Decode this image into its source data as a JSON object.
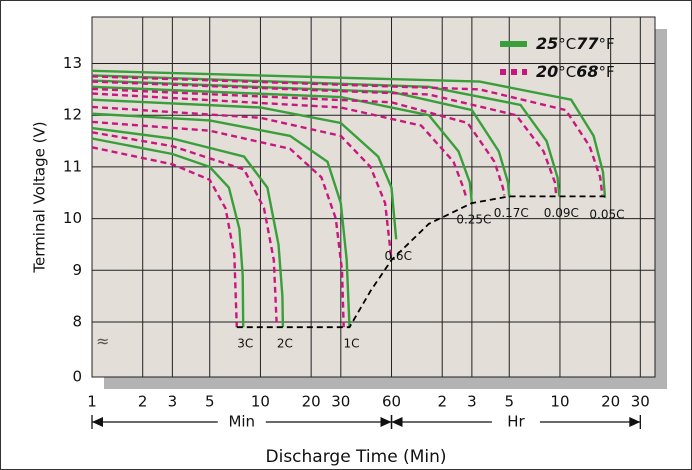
{
  "chart_data": {
    "type": "line",
    "x_label": "Discharge Time (Min)",
    "y_label": "Terminal Voltage (V)",
    "xscale": "log",
    "xlim": [
      1,
      2200
    ],
    "xticks": [
      1,
      2,
      3,
      5,
      10,
      20,
      30,
      60,
      {
        "value": 120,
        "label": "2"
      },
      {
        "value": 180,
        "label": "3"
      },
      {
        "value": 300,
        "label": "5"
      },
      {
        "value": 600,
        "label": "10"
      },
      {
        "value": 1200,
        "label": "20"
      },
      {
        "value": 1800,
        "label": "30"
      }
    ],
    "ylim": [
      0,
      13.9
    ],
    "yticks": [
      0,
      8,
      9,
      10,
      11,
      12,
      13
    ],
    "y_axis_break": "≈",
    "grid": true,
    "time_units": [
      {
        "label": "Min",
        "from": 1,
        "to": 60
      },
      {
        "label": "Hr",
        "from": 60,
        "to": 1800
      }
    ],
    "legend": [
      {
        "temp_c": "25",
        "unit_c": "°C",
        "temp_f": "77",
        "unit_f": "°F",
        "color": "#3a9e3a",
        "dash": false
      },
      {
        "temp_c": "20",
        "unit_c": "°C",
        "temp_f": "68",
        "unit_f": "°F",
        "color": "#c8187f",
        "dash": true
      }
    ],
    "curves": [
      {
        "label": "3C",
        "series": [
          {
            "x": [
              1,
              3,
              5,
              6.5,
              7.5,
              7.85,
              7.9
            ],
            "values": [
              11.55,
              11.25,
              11.0,
              10.6,
              9.8,
              8.9,
              7.9
            ]
          },
          {
            "x": [
              1,
              3,
              5,
              6.2,
              7,
              7.24
            ],
            "values": [
              11.38,
              11.05,
              10.75,
              10.2,
              9.3,
              7.9
            ]
          }
        ]
      },
      {
        "label": "2C",
        "series": [
          {
            "x": [
              1,
              3,
              8,
              11,
              12.8,
              13.5,
              13.6
            ],
            "values": [
              11.75,
              11.55,
              11.2,
              10.6,
              9.5,
              8.5,
              7.9
            ]
          },
          {
            "x": [
              1,
              3,
              8,
              10.5,
              12,
              12.5
            ],
            "values": [
              11.67,
              11.4,
              10.95,
              10.2,
              9.2,
              7.9
            ]
          }
        ]
      },
      {
        "label": "1C",
        "series": [
          {
            "x": [
              1,
              5,
              15,
              25,
              30,
              32.5,
              33.8
            ],
            "values": [
              12.03,
              11.9,
              11.6,
              11.1,
              10.3,
              9.2,
              7.9
            ]
          },
          {
            "x": [
              1,
              5,
              15,
              23,
              28,
              30.5,
              31.2
            ],
            "values": [
              11.87,
              11.7,
              11.35,
              10.8,
              10.0,
              9.0,
              7.9
            ]
          }
        ]
      },
      {
        "label": "0.6C",
        "series": [
          {
            "x": [
              1,
              10,
              30,
              50,
              60,
              64
            ],
            "values": [
              12.3,
              12.15,
              11.85,
              11.2,
              10.6,
              9.6
            ]
          },
          {
            "x": [
              1,
              10,
              30,
              45,
              55,
              60
            ],
            "values": [
              12.16,
              11.95,
              11.6,
              11.0,
              10.3,
              9.2
            ]
          }
        ]
      },
      {
        "label": "0.25C",
        "series": [
          {
            "x": [
              1,
              30,
              100,
              150,
              175,
              180
            ],
            "values": [
              12.55,
              12.35,
              12.0,
              11.3,
              10.7,
              10.3
            ]
          },
          {
            "x": [
              1,
              30,
              90,
              140,
              160,
              167
            ],
            "values": [
              12.42,
              12.15,
              11.8,
              11.1,
              10.6,
              10.4
            ]
          }
        ]
      },
      {
        "label": "0.17C",
        "series": [
          {
            "x": [
              1,
              60,
              180,
              260,
              295,
              300
            ],
            "values": [
              12.67,
              12.45,
              12.1,
              11.3,
              10.7,
              10.43
            ]
          },
          {
            "x": [
              1,
              60,
              170,
              245,
              275,
              280
            ],
            "values": [
              12.51,
              12.25,
              11.85,
              11.1,
              10.6,
              10.45
            ]
          }
        ]
      },
      {
        "label": "0.09C",
        "series": [
          {
            "x": [
              1,
              100,
              350,
              500,
              580,
              595
            ],
            "values": [
              12.77,
              12.55,
              12.2,
              11.5,
              10.8,
              10.43
            ]
          },
          {
            "x": [
              1,
              100,
              330,
              480,
              560,
              570
            ],
            "values": [
              12.65,
              12.4,
              12.0,
              11.3,
              10.7,
              10.45
            ]
          }
        ]
      },
      {
        "label": "0.05C",
        "series": [
          {
            "x": [
              1,
              200,
              700,
              950,
              1080,
              1110
            ],
            "values": [
              12.86,
              12.65,
              12.3,
              11.6,
              10.9,
              10.4
            ]
          },
          {
            "x": [
              1,
              200,
              650,
              900,
              1040,
              1070
            ],
            "values": [
              12.75,
              12.5,
              12.1,
              11.4,
              10.8,
              10.45
            ]
          }
        ]
      }
    ],
    "end_voltage_line": {
      "x": [
        7.24,
        33.8,
        45,
        60,
        100,
        180,
        300,
        1110
      ],
      "values": [
        7.9,
        7.9,
        8.6,
        9.2,
        9.9,
        10.3,
        10.43,
        10.43
      ],
      "color": "#000000"
    }
  }
}
